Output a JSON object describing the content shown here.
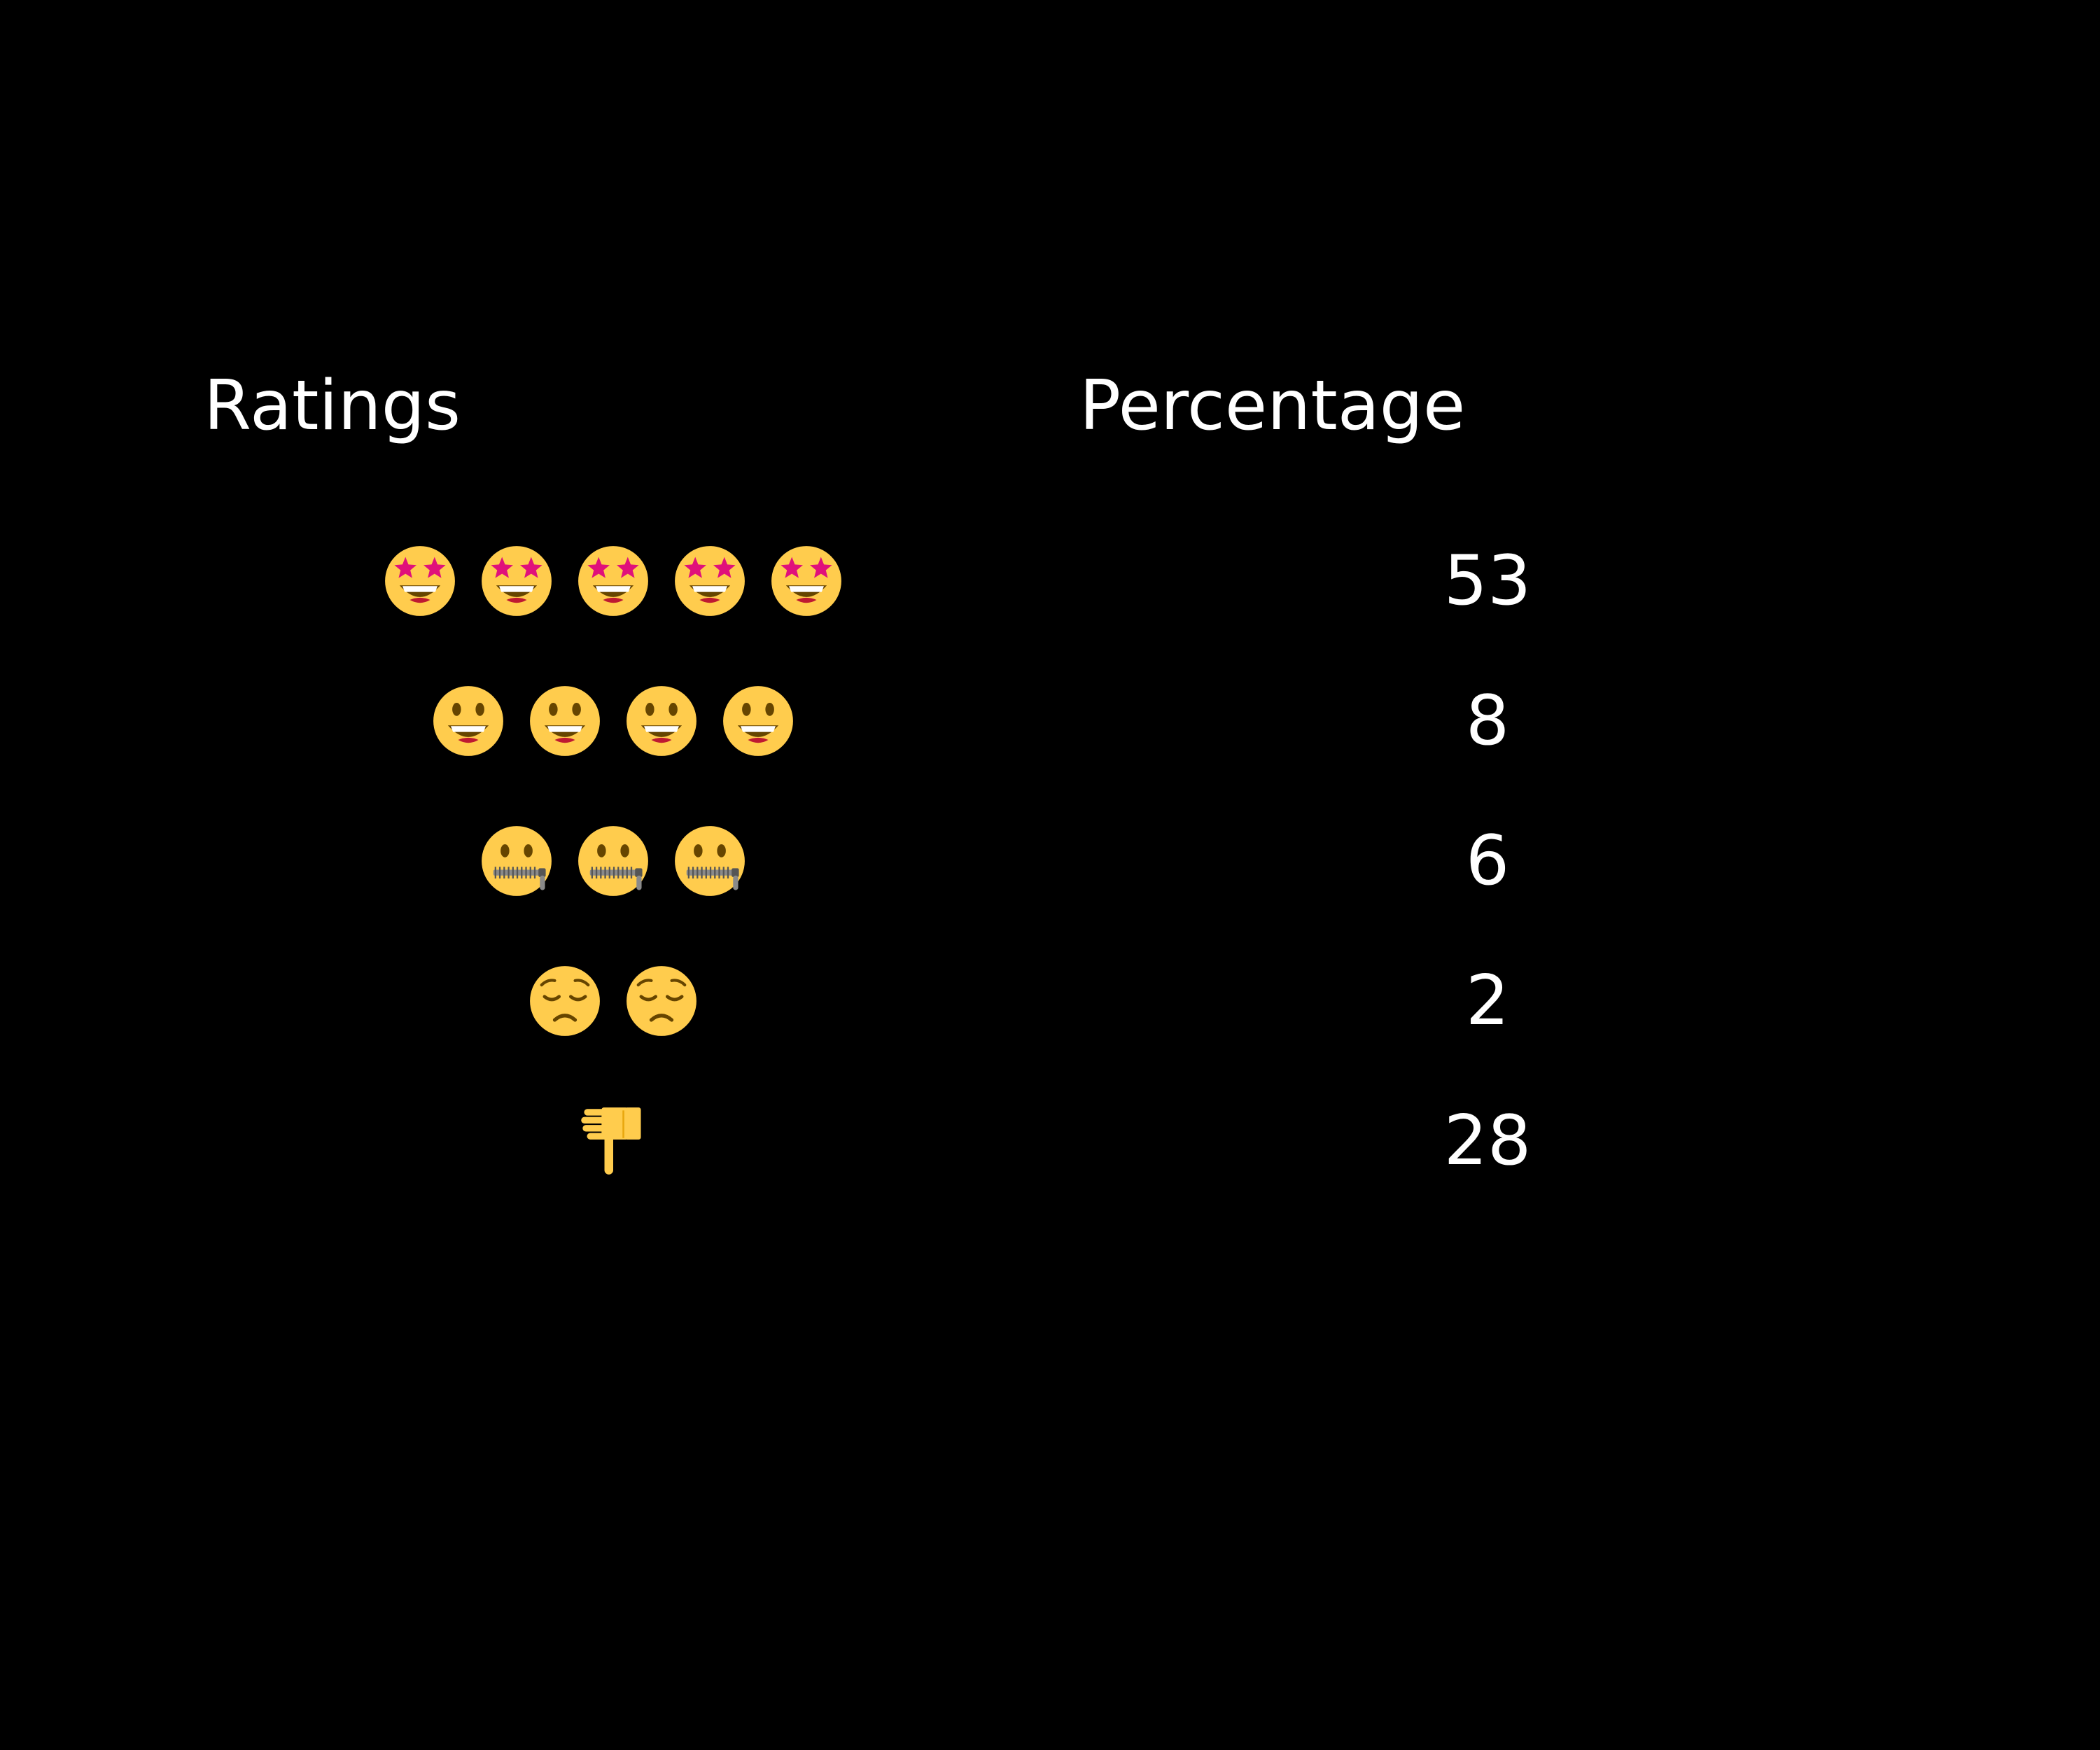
{
  "chart_data": {
    "type": "table",
    "columns": [
      "Ratings",
      "Percentage"
    ],
    "rows": [
      {
        "icon": "star-struck-face-icon",
        "count": 5,
        "value": 53,
        "value_label": "53"
      },
      {
        "icon": "grinning-face-icon",
        "count": 4,
        "value": 8,
        "value_label": "8"
      },
      {
        "icon": "zipper-mouth-face-icon",
        "count": 3,
        "value": 6,
        "value_label": "6"
      },
      {
        "icon": "pensive-face-icon",
        "count": 2,
        "value": 2,
        "value_label": "2"
      },
      {
        "icon": "thumbs-down-icon",
        "count": 1,
        "value": 28,
        "value_label": "28"
      }
    ]
  },
  "colors": {
    "background": "#000000",
    "text": "#ffffff",
    "face": "#FFCC4D",
    "face_dark": "#664500",
    "star": "#E0107B",
    "mouth_red": "#BE1931",
    "zipper": "#8A8A8A"
  }
}
